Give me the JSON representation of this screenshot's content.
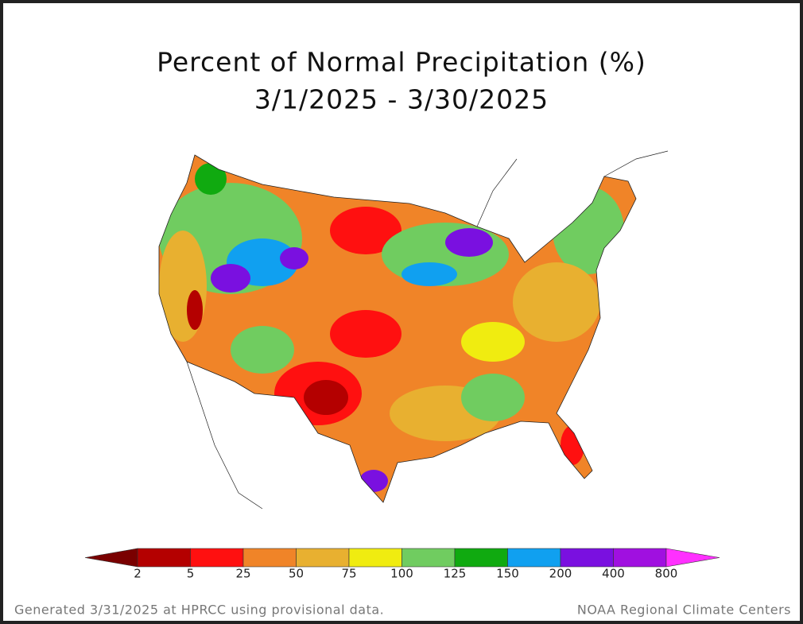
{
  "title": [
    "Percent of Normal Precipitation (%)",
    "3/1/2025 - 3/30/2025"
  ],
  "legend": {
    "ticks": [
      2,
      5,
      25,
      50,
      75,
      100,
      125,
      150,
      200,
      400,
      800
    ],
    "colors": [
      "#7a0000",
      "#b40000",
      "#ff1010",
      "#f08428",
      "#e8b030",
      "#f0ec10",
      "#70cc60",
      "#10aa10",
      "#10a0f0",
      "#7a10e0",
      "#a010e0",
      "#ff30ff"
    ]
  },
  "footer": {
    "left": "Generated 3/31/2025 at HPRCC using provisional data.",
    "right": "NOAA Regional Climate Centers"
  }
}
